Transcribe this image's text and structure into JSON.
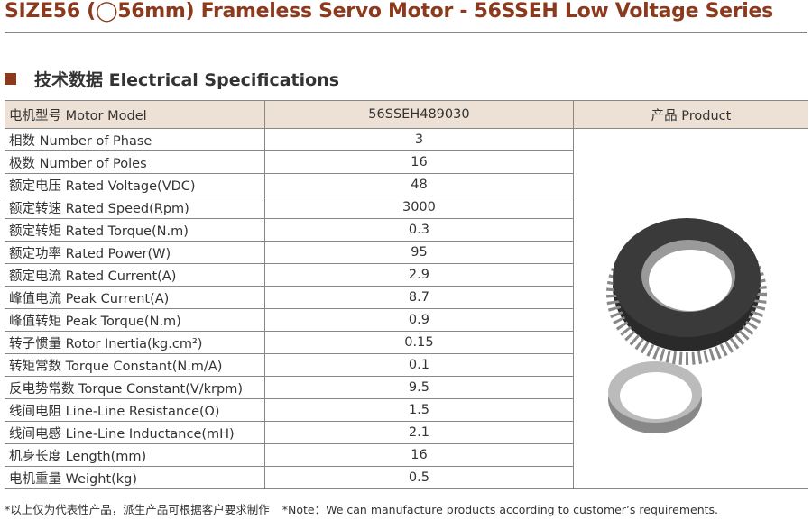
{
  "title": "SIZE56 (◯56mm) Frameless Servo Motor - 56SSEH Low Voltage Series",
  "section_title": "技术数据 Electrical Specifications",
  "colors": {
    "accent": "#8b3a1e",
    "header_bg": "#ede1d5"
  },
  "table": {
    "header": {
      "label": "电机型号 Motor Model",
      "value": "56SSEH489030",
      "product": "产品 Product"
    },
    "rows": [
      {
        "label": "相数 Number of Phase",
        "value": "3"
      },
      {
        "label": "极数 Number of Poles",
        "value": "16"
      },
      {
        "label": "额定电压 Rated Voltage(VDC)",
        "value": "48"
      },
      {
        "label": "额定转速 Rated Speed(Rpm)",
        "value": "3000"
      },
      {
        "label": "额定转矩 Rated Torque(N.m)",
        "value": "0.3"
      },
      {
        "label": "额定功率 Rated Power(W)",
        "value": "95"
      },
      {
        "label": "额定电流 Rated Current(A)",
        "value": "2.9"
      },
      {
        "label": "峰值电流 Peak Current(A)",
        "value": "8.7"
      },
      {
        "label": "峰值转矩 Peak Torque(N.m)",
        "value": "0.9"
      },
      {
        "label": "转子惯量 Rotor Inertia(kg.cm²)",
        "value": "0.15"
      },
      {
        "label": "转矩常数 Torque Constant(N.m/A)",
        "value": "0.1"
      },
      {
        "label": "反电势常数 Torque Constant(V/krpm)",
        "value": "9.5"
      },
      {
        "label": "线间电阻 Line-Line Resistance(Ω)",
        "value": "1.5"
      },
      {
        "label": "线间电感 Line-Line Inductance(mH)",
        "value": "2.1"
      },
      {
        "label": "机身长度 Length(mm)",
        "value": "16"
      },
      {
        "label": "电机重量 Weight(kg)",
        "value": "0.5"
      }
    ]
  },
  "notes": {
    "cn": "*以上仅为代表性产品，派生产品可根据客户要求制作",
    "en": "*Note：We can manufacture products according to customer’s requirements."
  }
}
